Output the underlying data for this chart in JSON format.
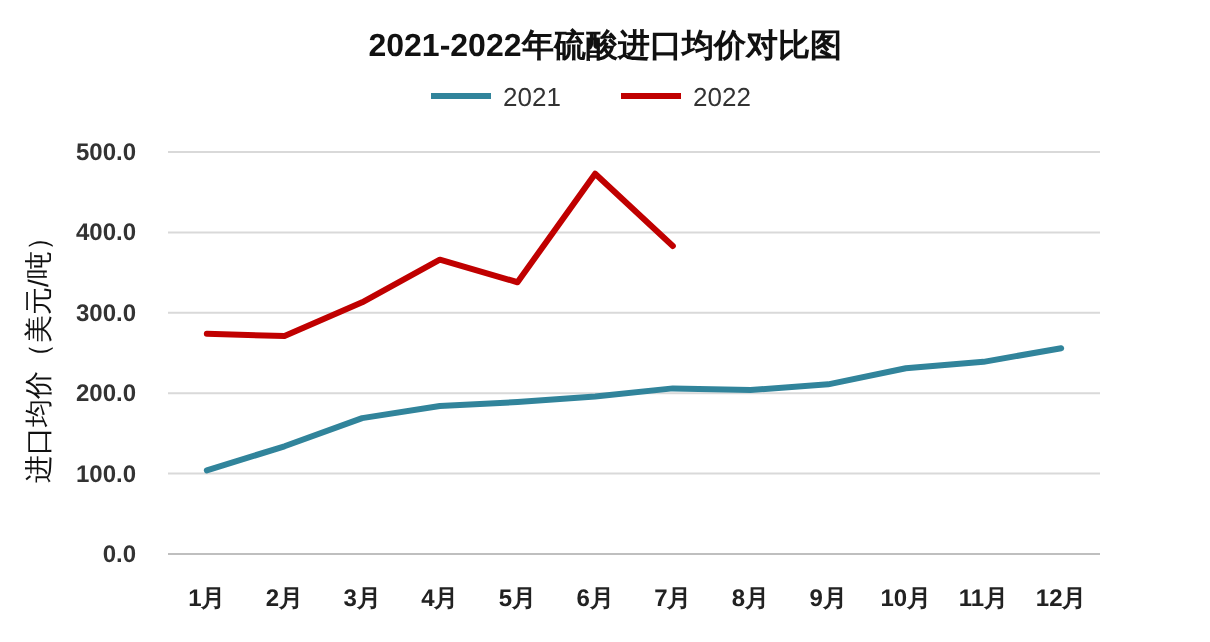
{
  "chart_data": {
    "type": "line",
    "title": "2021-2022年硫酸进口均价对比图",
    "ylabel": "进口均价（美元/吨）",
    "categories": [
      "1月",
      "2月",
      "3月",
      "4月",
      "5月",
      "6月",
      "7月",
      "8月",
      "9月",
      "10月",
      "11月",
      "12月"
    ],
    "series": [
      {
        "name": "2021",
        "color": "#31849b",
        "values": [
          104,
          134,
          169,
          184,
          189,
          196,
          206,
          204,
          211,
          231,
          239,
          256
        ]
      },
      {
        "name": "2022",
        "color": "#c00000",
        "values": [
          274,
          271,
          313,
          366,
          338,
          473,
          383,
          null,
          null,
          null,
          null,
          null
        ]
      }
    ],
    "ylim": [
      0,
      500
    ],
    "yticks": [
      {
        "value": 0,
        "label": "0.0"
      },
      {
        "value": 100,
        "label": "100.0"
      },
      {
        "value": 200,
        "label": "200.0"
      },
      {
        "value": 300,
        "label": "300.0"
      },
      {
        "value": 400,
        "label": "400.0"
      },
      {
        "value": 500,
        "label": "500.0"
      }
    ],
    "grid": "y",
    "legend": "top"
  }
}
